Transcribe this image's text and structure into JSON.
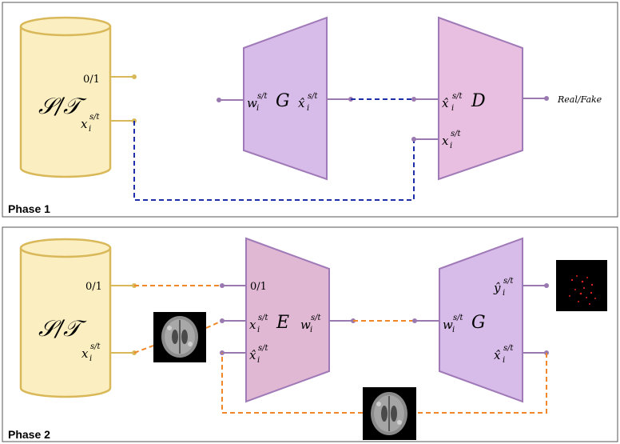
{
  "colors": {
    "db_fill": "#fbefc2",
    "db_stroke": "#d9b85a",
    "gen_fill": "#d7bbe8",
    "gen_stroke": "#a07ab8",
    "disc_fill": "#e8bfe0",
    "enc_fill": "#e0b8d4",
    "blue_dash": "#1f2fa8",
    "orange_dash": "#f0882a",
    "node": "#9a78b0",
    "gold_node": "#d9b85a"
  },
  "phase1": {
    "label": "Phase 1",
    "dataset": {
      "name": "𝒮/𝒯",
      "port_top": "0/1",
      "port_bottom": "x",
      "port_bottom_sup": "s/t",
      "port_bottom_sub": "i"
    },
    "generator": {
      "name": "G",
      "in": "w",
      "in_sup": "s/t",
      "in_sub": "i",
      "out": "x̂",
      "out_sup": "s/t",
      "out_sub": "i"
    },
    "discriminator": {
      "name": "D",
      "in_top": "x̂",
      "in_top_sup": "s/t",
      "in_top_sub": "i",
      "in_bottom": "x",
      "in_bottom_sup": "s/t",
      "in_bottom_sub": "i",
      "out": "Real/Fake"
    }
  },
  "phase2": {
    "label": "Phase 2",
    "dataset": {
      "name": "𝒮/𝒯",
      "port_top": "0/1",
      "port_bottom": "x",
      "port_bottom_sup": "s/t",
      "port_bottom_sub": "i"
    },
    "encoder": {
      "name": "E",
      "in_top": "0/1",
      "in_mid": "x",
      "in_mid_sup": "s/t",
      "in_mid_sub": "i",
      "in_bottom": "x̂",
      "in_bottom_sup": "s/t",
      "in_bottom_sub": "i",
      "out": "w",
      "out_sup": "s/t",
      "out_sub": "i"
    },
    "generator": {
      "name": "G",
      "in": "w",
      "in_sup": "s/t",
      "in_sub": "i",
      "out_top": "ŷ",
      "out_top_sup": "s/t",
      "out_top_sub": "i",
      "out_bottom": "x̂",
      "out_bottom_sup": "s/t",
      "out_bottom_sub": "i"
    }
  }
}
